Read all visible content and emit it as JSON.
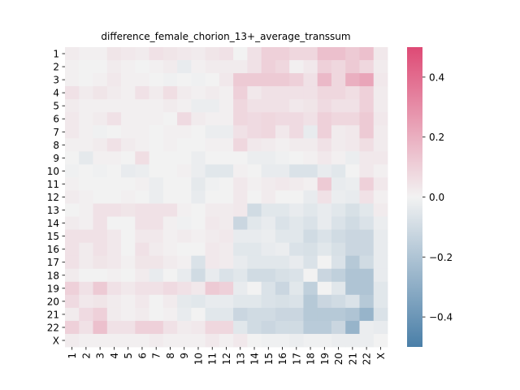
{
  "chart_data": {
    "type": "heatmap",
    "title": "difference_female_chorion_13+_average_transsum",
    "xlabel": "",
    "ylabel": "",
    "rows": [
      "1",
      "2",
      "3",
      "4",
      "5",
      "6",
      "7",
      "8",
      "9",
      "10",
      "11",
      "12",
      "13",
      "14",
      "15",
      "16",
      "17",
      "18",
      "19",
      "20",
      "21",
      "22",
      "X"
    ],
    "cols": [
      "1",
      "2",
      "3",
      "4",
      "5",
      "6",
      "7",
      "8",
      "9",
      "10",
      "11",
      "12",
      "13",
      "14",
      "15",
      "16",
      "17",
      "18",
      "19",
      "20",
      "21",
      "22",
      "X"
    ],
    "vmin": -0.5,
    "vmax": 0.5,
    "colorbar": {
      "ticks": [
        0.4,
        0.2,
        0.0,
        -0.2,
        -0.4
      ],
      "tick_labels": [
        "0.4",
        "0.2",
        "0.0",
        "−0.2",
        "−0.4"
      ],
      "placement": "right",
      "colors": {
        "low": "#4a7fa8",
        "mid": "#f2f2f2",
        "high": "#de4a75"
      }
    },
    "values": [
      [
        0.02,
        0.01,
        0.01,
        0.04,
        0.03,
        0.02,
        0.05,
        0.04,
        0.03,
        0.02,
        0.04,
        0.05,
        0.0,
        0.05,
        0.1,
        0.1,
        0.08,
        0.08,
        0.15,
        0.15,
        0.12,
        0.15,
        0.03
      ],
      [
        0.01,
        0.0,
        0.0,
        0.02,
        0.01,
        0.0,
        0.01,
        0.02,
        -0.03,
        0.01,
        0.02,
        0.02,
        0.02,
        0.05,
        0.1,
        0.08,
        0.01,
        0.03,
        0.1,
        0.08,
        0.12,
        0.08,
        0.02
      ],
      [
        0.01,
        0.0,
        0.01,
        0.03,
        0.01,
        0.01,
        0.0,
        -0.01,
        0.0,
        -0.01,
        0.0,
        0.03,
        0.12,
        0.12,
        0.12,
        0.12,
        0.1,
        0.05,
        0.17,
        0.08,
        0.2,
        0.23,
        0.03
      ],
      [
        0.05,
        0.02,
        0.04,
        0.02,
        0.01,
        0.05,
        0.02,
        0.06,
        0.02,
        0.01,
        0.02,
        0.01,
        0.1,
        0.03,
        0.05,
        0.05,
        0.05,
        0.05,
        0.08,
        0.08,
        0.06,
        0.1,
        0.02
      ],
      [
        0.02,
        0.01,
        0.01,
        0.01,
        0.01,
        0.01,
        0.01,
        0.02,
        0.01,
        -0.02,
        -0.02,
        0.01,
        0.08,
        0.05,
        0.05,
        0.05,
        0.03,
        0.04,
        0.07,
        0.05,
        0.05,
        0.1,
        0.02
      ],
      [
        0.03,
        0.01,
        0.02,
        0.05,
        0.01,
        0.01,
        0.01,
        0.0,
        0.07,
        0.02,
        0.01,
        0.01,
        0.08,
        0.07,
        0.08,
        0.07,
        0.07,
        0.05,
        0.1,
        0.08,
        0.08,
        0.12,
        0.03
      ],
      [
        0.03,
        0.01,
        -0.01,
        0.0,
        0.01,
        0.01,
        0.0,
        0.01,
        0.01,
        0.0,
        -0.02,
        -0.02,
        0.05,
        0.07,
        0.08,
        0.03,
        0.07,
        -0.03,
        0.1,
        0.02,
        0.03,
        0.12,
        0.02
      ],
      [
        0.01,
        0.01,
        0.02,
        0.05,
        0.02,
        0.01,
        0.0,
        0.01,
        0.0,
        0.0,
        0.01,
        0.01,
        0.08,
        0.03,
        0.02,
        0.01,
        0.02,
        0.02,
        0.05,
        0.02,
        0.03,
        0.06,
        0.02
      ],
      [
        0.0,
        -0.04,
        0.01,
        0.01,
        0.0,
        0.06,
        0.0,
        0.0,
        0.0,
        -0.02,
        0.0,
        0.0,
        0.0,
        -0.02,
        -0.02,
        -0.01,
        0.0,
        0.01,
        0.03,
        0.01,
        -0.02,
        0.03,
        0.03
      ],
      [
        -0.01,
        0.0,
        -0.01,
        0.0,
        -0.03,
        -0.02,
        0.0,
        0.0,
        0.01,
        -0.02,
        -0.05,
        -0.05,
        0.01,
        0.0,
        -0.03,
        -0.03,
        -0.07,
        -0.07,
        -0.03,
        -0.05,
        0.0,
        0.03,
        0.01
      ],
      [
        0.01,
        0.0,
        0.0,
        0.0,
        0.0,
        0.01,
        -0.02,
        0.0,
        0.0,
        -0.04,
        -0.01,
        0.0,
        0.03,
        0.01,
        0.02,
        0.03,
        0.02,
        0.01,
        0.12,
        -0.03,
        -0.02,
        0.1,
        0.03
      ],
      [
        0.02,
        0.01,
        0.0,
        0.0,
        0.01,
        0.0,
        -0.02,
        0.0,
        0.0,
        -0.03,
        0.0,
        0.0,
        0.03,
        0.0,
        0.02,
        0.0,
        0.0,
        -0.03,
        0.05,
        -0.02,
        -0.03,
        0.05,
        0.01
      ],
      [
        0.0,
        0.01,
        0.05,
        0.05,
        0.04,
        0.05,
        0.05,
        0.05,
        0.01,
        0.0,
        0.02,
        0.02,
        0.03,
        -0.1,
        -0.05,
        -0.05,
        -0.03,
        -0.05,
        -0.03,
        -0.05,
        -0.08,
        -0.05,
        0.02
      ],
      [
        0.02,
        0.01,
        0.05,
        0.0,
        0.0,
        0.05,
        0.05,
        0.01,
        -0.01,
        0.0,
        0.03,
        0.02,
        -0.12,
        -0.05,
        -0.03,
        -0.07,
        -0.05,
        -0.07,
        -0.03,
        -0.07,
        -0.1,
        -0.07,
        -0.02
      ],
      [
        0.05,
        0.05,
        0.05,
        0.03,
        0.0,
        0.03,
        0.03,
        0.01,
        0.02,
        0.01,
        0.02,
        0.03,
        -0.03,
        -0.03,
        -0.02,
        -0.05,
        -0.05,
        -0.1,
        -0.07,
        -0.1,
        -0.12,
        -0.12,
        -0.03
      ],
      [
        0.05,
        0.02,
        0.05,
        0.03,
        0.0,
        0.05,
        0.02,
        0.01,
        0.0,
        0.0,
        0.03,
        0.02,
        -0.05,
        -0.05,
        -0.03,
        -0.02,
        -0.07,
        -0.08,
        -0.05,
        -0.08,
        -0.12,
        -0.12,
        -0.03
      ],
      [
        0.05,
        0.02,
        0.04,
        0.03,
        0.01,
        0.04,
        0.04,
        0.02,
        0.01,
        -0.07,
        0.03,
        0.02,
        -0.03,
        -0.05,
        -0.05,
        -0.05,
        -0.03,
        -0.07,
        0.0,
        -0.07,
        -0.18,
        -0.1,
        -0.03
      ],
      [
        0.02,
        0.0,
        0.0,
        0.01,
        0.0,
        0.02,
        -0.03,
        0.0,
        -0.03,
        -0.1,
        -0.03,
        -0.07,
        -0.05,
        -0.1,
        -0.1,
        -0.08,
        -0.07,
        0.0,
        -0.12,
        -0.15,
        -0.2,
        -0.2,
        -0.03
      ],
      [
        0.1,
        0.05,
        0.12,
        0.05,
        0.03,
        0.05,
        0.05,
        0.07,
        0.05,
        0.03,
        0.12,
        0.1,
        -0.03,
        0.0,
        -0.07,
        -0.12,
        -0.05,
        -0.15,
        0.0,
        -0.05,
        -0.2,
        -0.2,
        -0.05
      ],
      [
        0.07,
        0.03,
        0.04,
        0.02,
        0.01,
        0.03,
        0.0,
        0.02,
        -0.04,
        -0.05,
        -0.03,
        -0.03,
        -0.05,
        -0.05,
        -0.07,
        -0.08,
        -0.07,
        -0.18,
        -0.12,
        -0.1,
        -0.07,
        -0.18,
        -0.05
      ],
      [
        0.02,
        0.07,
        0.1,
        0.02,
        0.01,
        0.02,
        0.0,
        0.01,
        -0.03,
        0.0,
        -0.05,
        -0.05,
        -0.12,
        -0.1,
        -0.1,
        -0.12,
        -0.12,
        -0.18,
        -0.18,
        -0.18,
        -0.2,
        -0.27,
        -0.07
      ],
      [
        0.1,
        0.05,
        0.15,
        0.05,
        0.05,
        0.1,
        0.1,
        0.05,
        0.02,
        0.03,
        0.08,
        0.08,
        -0.05,
        -0.1,
        -0.12,
        -0.1,
        -0.1,
        -0.17,
        -0.17,
        -0.12,
        -0.27,
        -0.02,
        -0.03
      ],
      [
        0.02,
        0.01,
        0.01,
        0.01,
        0.01,
        0.01,
        0.02,
        0.01,
        0.01,
        0.01,
        0.03,
        0.01,
        0.03,
        0.0,
        -0.01,
        -0.01,
        -0.02,
        -0.01,
        -0.01,
        -0.02,
        -0.02,
        -0.02,
        0.0
      ]
    ]
  }
}
